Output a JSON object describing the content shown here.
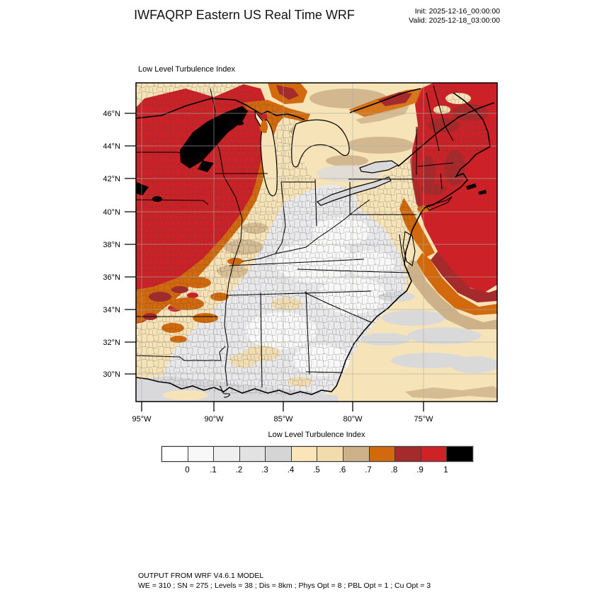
{
  "header": {
    "title": "IWFAQRP Eastern US Real Time WRF",
    "init_label": "Init: 2025-12-16_00:00:00",
    "valid_label": "Valid: 2025-12-18_03:00:00"
  },
  "map": {
    "field_title": "Low Level Turbulence Index",
    "lat_ticks": [
      "46°N",
      "44°N",
      "42°N",
      "40°N",
      "38°N",
      "36°N",
      "34°N",
      "32°N",
      "30°N"
    ],
    "lon_ticks": [
      "95°W",
      "90°W",
      "85°W",
      "80°W",
      "75°W"
    ]
  },
  "colorbar": {
    "title": "Low Level Turbulence Index",
    "tick_labels": [
      "0",
      ".1",
      ".2",
      ".3",
      ".4",
      ".5",
      ".6",
      ".7",
      ".8",
      ".9",
      "1"
    ],
    "colors": [
      "#ffffff",
      "#f8f8f8",
      "#efefef",
      "#e2e2e2",
      "#d5d5d5",
      "#fae5b8",
      "#f2dcac",
      "#cdb189",
      "#d2690c",
      "#a52a2b",
      "#ce2227",
      "#000000"
    ]
  },
  "palette": {
    "cream": "#f7e3b8",
    "cream_deep": "#f3dcac",
    "tan": "#cdb189",
    "orange": "#d2690c",
    "brick": "#a52a2b",
    "red": "#cb2127",
    "black": "#000000",
    "gray_light": "#e9e9eb",
    "gray": "#d9d9dc",
    "white_patch": "#fafafa"
  },
  "footer": {
    "line1": "OUTPUT FROM WRF V4.6.1 MODEL",
    "line2": "WE = 310 ; SN = 275 ; Levels = 38 ; Dis = 8km ; Phys Opt = 8 ; PBL Opt = 1 ; Cu Opt = 3"
  }
}
